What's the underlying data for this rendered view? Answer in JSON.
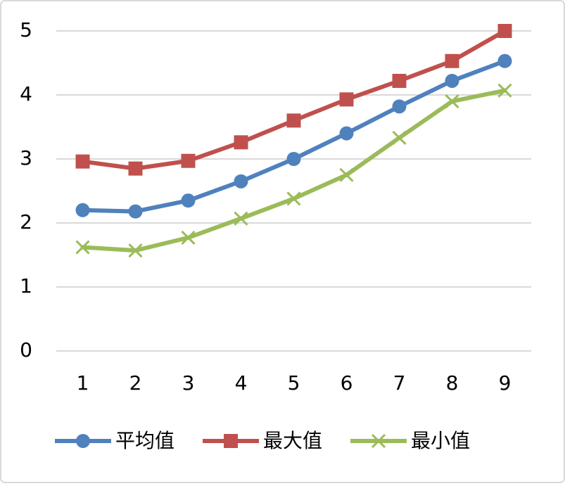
{
  "chart_data": {
    "type": "line",
    "categories": [
      "1",
      "2",
      "3",
      "4",
      "5",
      "6",
      "7",
      "8",
      "9"
    ],
    "series": [
      {
        "name": "平均值",
        "color": "#4f81bd",
        "marker": "circle",
        "values": [
          2.2,
          2.18,
          2.35,
          2.65,
          3.0,
          3.4,
          3.82,
          4.22,
          4.53
        ]
      },
      {
        "name": "最大值",
        "color": "#c0504d",
        "marker": "square",
        "values": [
          2.96,
          2.85,
          2.97,
          3.26,
          3.6,
          3.93,
          4.22,
          4.53,
          5.0
        ]
      },
      {
        "name": "最小值",
        "color": "#9bbb59",
        "marker": "x",
        "values": [
          1.62,
          1.57,
          1.77,
          2.07,
          2.38,
          2.75,
          3.33,
          3.9,
          4.07
        ]
      }
    ],
    "ylim": [
      0,
      5
    ],
    "yticks": [
      0,
      1,
      2,
      3,
      4,
      5
    ],
    "grid": true,
    "legend": "bottom"
  }
}
